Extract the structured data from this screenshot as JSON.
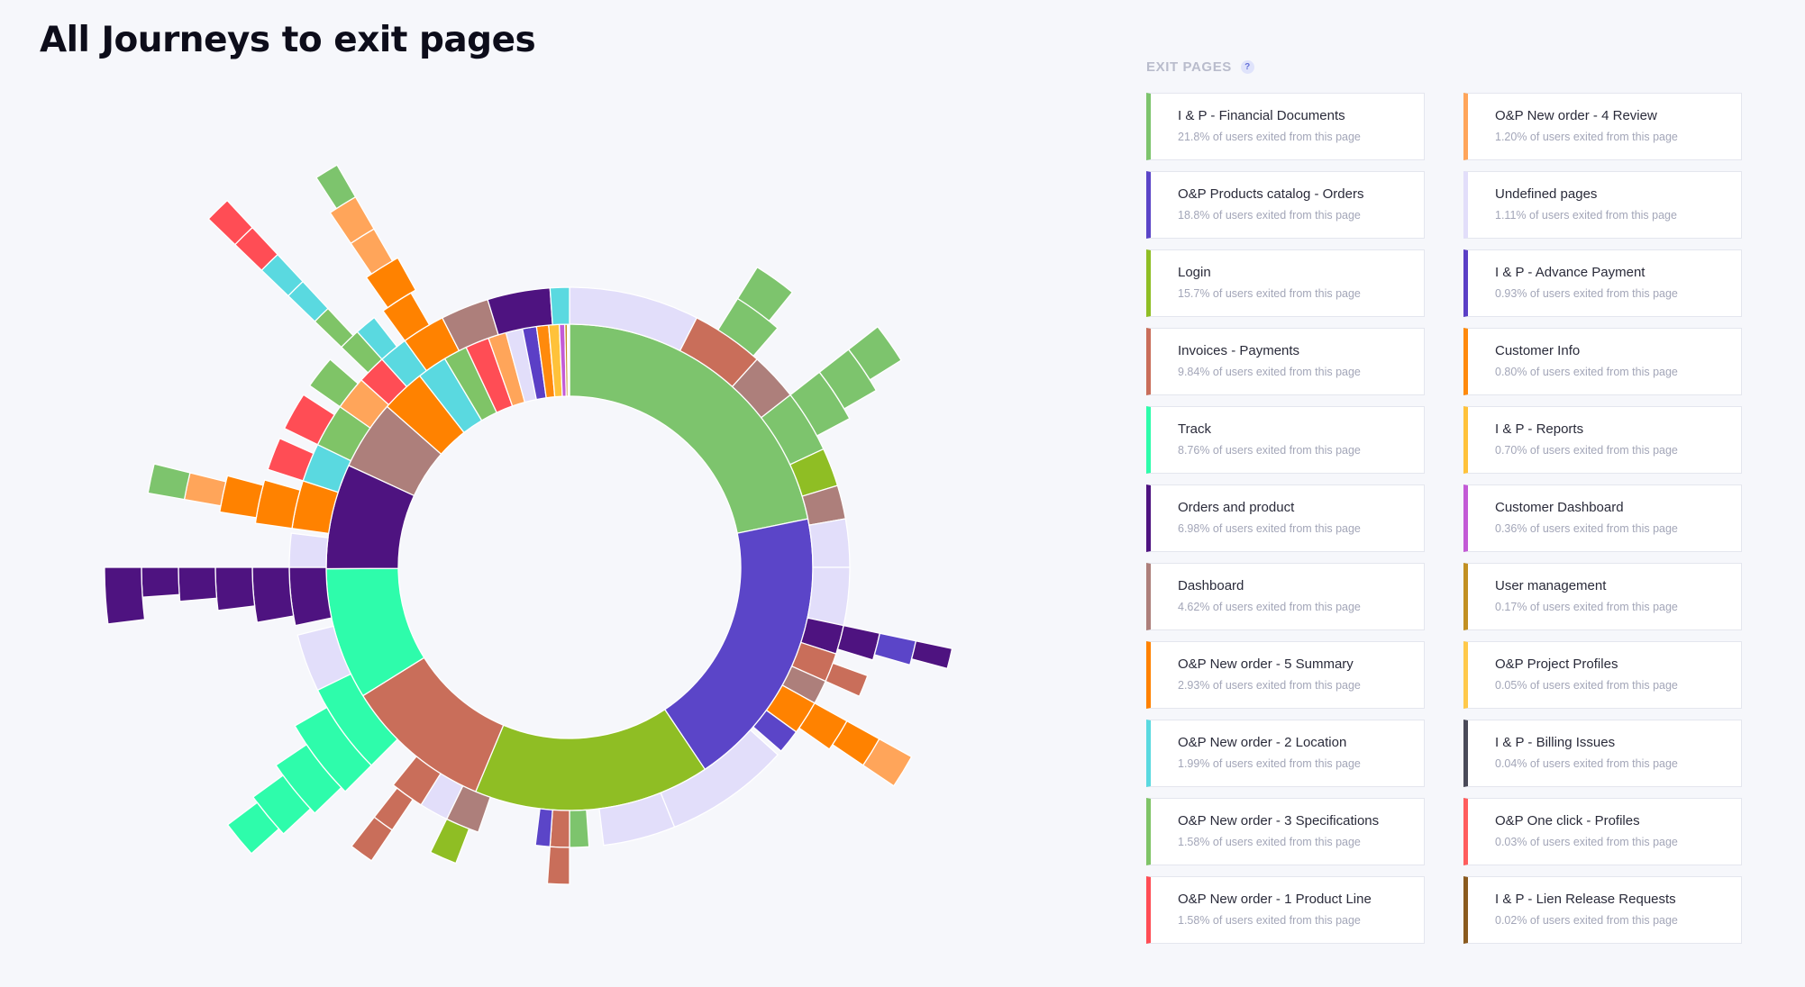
{
  "page": {
    "title": "All Journeys to exit pages"
  },
  "panel": {
    "header": "EXIT PAGES",
    "help_icon": "?"
  },
  "exit_pages": [
    {
      "name": "I & P - Financial Documents",
      "share": "21.8% of users exited from this page",
      "color": "#7dc46d"
    },
    {
      "name": "O&P Products catalog - Orders",
      "share": "18.8% of users exited from this page",
      "color": "#5b45c8"
    },
    {
      "name": "Login",
      "share": "15.7% of users exited from this page",
      "color": "#8fbe24"
    },
    {
      "name": "Invoices - Payments",
      "share": "9.84% of users exited from this page",
      "color": "#c96e5a"
    },
    {
      "name": "Track",
      "share": "8.76% of users exited from this page",
      "color": "#2efcab"
    },
    {
      "name": "Orders and product",
      "share": "6.98% of users exited from this page",
      "color": "#4e1380"
    },
    {
      "name": "Dashboard",
      "share": "4.62% of users exited from this page",
      "color": "#ad7f7b"
    },
    {
      "name": "O&P New order - 5 Summary",
      "share": "2.93% of users exited from this page",
      "color": "#ff8200"
    },
    {
      "name": "O&P New order - 2 Location",
      "share": "1.99% of users exited from this page",
      "color": "#5ad9e0"
    },
    {
      "name": "O&P New order - 3 Specifications",
      "share": "1.58% of users exited from this page",
      "color": "#7fc467"
    },
    {
      "name": "O&P New order - 1 Product Line",
      "share": "1.58% of users exited from this page",
      "color": "#ff4d55"
    },
    {
      "name": "O&P New order - 4 Review",
      "share": "1.20% of users exited from this page",
      "color": "#ffa55a"
    },
    {
      "name": "Undefined pages",
      "share": "1.11% of users exited from this page",
      "color": "#e2defa"
    },
    {
      "name": "I & P - Advance Payment",
      "share": "0.93% of users exited from this page",
      "color": "#5b3fc6"
    },
    {
      "name": "Customer Info",
      "share": "0.80% of users exited from this page",
      "color": "#ff8a0c"
    },
    {
      "name": "I & P - Reports",
      "share": "0.70% of users exited from this page",
      "color": "#ffc23a"
    },
    {
      "name": "Customer Dashboard",
      "share": "0.36% of users exited from this page",
      "color": "#c35ad6"
    },
    {
      "name": "User management",
      "share": "0.17% of users exited from this page",
      "color": "#c29022"
    },
    {
      "name": "O&P Project Profiles",
      "share": "0.05% of users exited from this page",
      "color": "#ffc94a"
    },
    {
      "name": "I & P - Billing Issues",
      "share": "0.04% of users exited from this page",
      "color": "#4a4a58"
    },
    {
      "name": "O&P One click - Profiles",
      "share": "0.03% of users exited from this page",
      "color": "#ff5d5d"
    },
    {
      "name": "I & P - Lien Release Requests",
      "share": "0.02% of users exited from this page",
      "color": "#8a5a1e"
    }
  ],
  "chart_data": {
    "type": "sunburst",
    "title": "All Journeys to exit pages",
    "unit": "% of users exited",
    "center": "empty",
    "inner_ring": [
      {
        "name": "I & P - Financial Documents",
        "value": 21.8
      },
      {
        "name": "O&P Products catalog - Orders",
        "value": 18.8
      },
      {
        "name": "Login",
        "value": 15.7
      },
      {
        "name": "Invoices - Payments",
        "value": 9.84
      },
      {
        "name": "Track",
        "value": 8.76
      },
      {
        "name": "Orders and product",
        "value": 6.98
      },
      {
        "name": "Dashboard",
        "value": 4.62
      },
      {
        "name": "O&P New order - 5 Summary",
        "value": 2.93
      },
      {
        "name": "O&P New order - 2 Location",
        "value": 1.99
      },
      {
        "name": "O&P New order - 3 Specifications",
        "value": 1.58
      },
      {
        "name": "O&P New order - 1 Product Line",
        "value": 1.58
      },
      {
        "name": "O&P New order - 4 Review",
        "value": 1.2
      },
      {
        "name": "Undefined pages",
        "value": 1.11
      },
      {
        "name": "I & P - Advance Payment",
        "value": 0.93
      },
      {
        "name": "Customer Info",
        "value": 0.8
      },
      {
        "name": "I & P - Reports",
        "value": 0.7
      },
      {
        "name": "Customer Dashboard",
        "value": 0.36
      },
      {
        "name": "User management",
        "value": 0.17
      },
      {
        "name": "O&P Project Profiles",
        "value": 0.05
      },
      {
        "name": "I & P - Billing Issues",
        "value": 0.04
      },
      {
        "name": "O&P One click - Profiles",
        "value": 0.03
      },
      {
        "name": "I & P - Lien Release Requests",
        "value": 0.02
      }
    ],
    "outer_rings": [
      {
        "from": 0,
        "to": 27,
        "depth": 1,
        "color": "#e2defa"
      },
      {
        "from": 27,
        "to": 42,
        "depth": 1,
        "color": "#c96e5a"
      },
      {
        "from": 42,
        "to": 52,
        "depth": 1,
        "color": "#ad7f7b"
      },
      {
        "from": 32,
        "to": 41,
        "depth": 2,
        "color": "#7dc46d"
      },
      {
        "from": 32,
        "to": 39,
        "depth": 3,
        "color": "#7dc46d"
      },
      {
        "from": 52,
        "to": 65,
        "depth": 1,
        "color": "#7dc46d"
      },
      {
        "from": 52,
        "to": 62,
        "depth": 2,
        "color": "#7dc46d"
      },
      {
        "from": 52,
        "to": 60,
        "depth": 3,
        "color": "#7dc46d"
      },
      {
        "from": 52,
        "to": 58,
        "depth": 4,
        "color": "#7dc46d"
      },
      {
        "from": 65,
        "to": 73,
        "depth": 1,
        "color": "#8fbe24"
      },
      {
        "from": 73,
        "to": 80,
        "depth": 1,
        "color": "#ad7f7b"
      },
      {
        "from": 80,
        "to": 90,
        "depth": 1,
        "color": "#e2defa"
      },
      {
        "from": 90,
        "to": 102,
        "depth": 1,
        "color": "#e2defa"
      },
      {
        "from": 102,
        "to": 108,
        "depth": 1,
        "color": "#4e1380"
      },
      {
        "from": 102,
        "to": 107,
        "depth": 2,
        "color": "#4e1380"
      },
      {
        "from": 102,
        "to": 106,
        "depth": 3,
        "color": "#5b45c8"
      },
      {
        "from": 102,
        "to": 105,
        "depth": 4,
        "color": "#4e1380"
      },
      {
        "from": 108,
        "to": 114,
        "depth": 1,
        "color": "#c96e5a"
      },
      {
        "from": 110,
        "to": 114,
        "depth": 2,
        "color": "#c96e5a"
      },
      {
        "from": 114,
        "to": 119,
        "depth": 1,
        "color": "#ad7f7b"
      },
      {
        "from": 119,
        "to": 126,
        "depth": 1,
        "color": "#ff8200"
      },
      {
        "from": 119,
        "to": 125,
        "depth": 2,
        "color": "#ff8200"
      },
      {
        "from": 119,
        "to": 124,
        "depth": 3,
        "color": "#ff8200"
      },
      {
        "from": 119,
        "to": 124,
        "depth": 4,
        "color": "#ffa55a"
      },
      {
        "from": 126,
        "to": 131,
        "depth": 1,
        "color": "#5b45c8"
      },
      {
        "from": 132,
        "to": 158,
        "depth": 1,
        "color": "#e2defa"
      },
      {
        "from": 158,
        "to": 173,
        "depth": 1,
        "color": "#e2defa"
      },
      {
        "from": 176,
        "to": 180,
        "depth": 1,
        "color": "#7dc46d"
      },
      {
        "from": 180,
        "to": 184,
        "depth": 1,
        "color": "#c96e5a"
      },
      {
        "from": 180,
        "to": 184,
        "depth": 2,
        "color": "#c96e5a"
      },
      {
        "from": 184,
        "to": 187,
        "depth": 1,
        "color": "#5b45c8"
      },
      {
        "from": 199,
        "to": 206,
        "depth": 1,
        "color": "#ad7f7b"
      },
      {
        "from": 201,
        "to": 206,
        "depth": 2,
        "color": "#8fbe24"
      },
      {
        "from": 206,
        "to": 212,
        "depth": 1,
        "color": "#e2defa"
      },
      {
        "from": 212,
        "to": 219,
        "depth": 1,
        "color": "#c96e5a"
      },
      {
        "from": 214,
        "to": 218,
        "depth": 2,
        "color": "#c96e5a"
      },
      {
        "from": 214,
        "to": 218,
        "depth": 3,
        "color": "#c96e5a"
      },
      {
        "from": 225,
        "to": 244,
        "depth": 1,
        "color": "#2efcab"
      },
      {
        "from": 225,
        "to": 240,
        "depth": 2,
        "color": "#2efcab"
      },
      {
        "from": 226,
        "to": 236,
        "depth": 3,
        "color": "#2efcab"
      },
      {
        "from": 227,
        "to": 234,
        "depth": 4,
        "color": "#2efcab"
      },
      {
        "from": 228,
        "to": 233,
        "depth": 5,
        "color": "#2efcab"
      },
      {
        "from": 244,
        "to": 256,
        "depth": 1,
        "color": "#e2defa"
      },
      {
        "from": 258,
        "to": 270,
        "depth": 1,
        "color": "#4e1380"
      },
      {
        "from": 260,
        "to": 270,
        "depth": 2,
        "color": "#4e1380"
      },
      {
        "from": 263,
        "to": 270,
        "depth": 3,
        "color": "#4e1380"
      },
      {
        "from": 265,
        "to": 270,
        "depth": 4,
        "color": "#4e1380"
      },
      {
        "from": 266,
        "to": 270,
        "depth": 5,
        "color": "#4e1380"
      },
      {
        "from": 263,
        "to": 270,
        "depth": 6,
        "color": "#4e1380"
      },
      {
        "from": 270,
        "to": 277,
        "depth": 1,
        "color": "#e2defa"
      },
      {
        "from": 278,
        "to": 288,
        "depth": 1,
        "color": "#ff8200"
      },
      {
        "from": 278,
        "to": 286,
        "depth": 2,
        "color": "#ff8200"
      },
      {
        "from": 279,
        "to": 285,
        "depth": 3,
        "color": "#ff8200"
      },
      {
        "from": 280,
        "to": 284,
        "depth": 4,
        "color": "#ffa55a"
      },
      {
        "from": 280,
        "to": 284,
        "depth": 5,
        "color": "#7dc46d"
      },
      {
        "from": 288,
        "to": 296,
        "depth": 1,
        "color": "#5ad9e0"
      },
      {
        "from": 288,
        "to": 294,
        "depth": 2,
        "color": "#ff4d55"
      },
      {
        "from": 296,
        "to": 305,
        "depth": 1,
        "color": "#7fc467"
      },
      {
        "from": 296,
        "to": 303,
        "depth": 2,
        "color": "#ff4d55"
      },
      {
        "from": 305,
        "to": 312,
        "depth": 1,
        "color": "#ffa55a"
      },
      {
        "from": 305,
        "to": 311,
        "depth": 2,
        "color": "#7fc467"
      },
      {
        "from": 312,
        "to": 318,
        "depth": 1,
        "color": "#ff4d55"
      },
      {
        "from": 314,
        "to": 318,
        "depth": 2,
        "color": "#7fc467"
      },
      {
        "from": 314,
        "to": 317,
        "depth": 3,
        "color": "#7fc467"
      },
      {
        "from": 314,
        "to": 317,
        "depth": 4,
        "color": "#5ad9e0"
      },
      {
        "from": 314,
        "to": 317,
        "depth": 5,
        "color": "#5ad9e0"
      },
      {
        "from": 314,
        "to": 317,
        "depth": 6,
        "color": "#ff4d55"
      },
      {
        "from": 314,
        "to": 317,
        "depth": 7,
        "color": "#ff4d55"
      },
      {
        "from": 318,
        "to": 324,
        "depth": 1,
        "color": "#5ad9e0"
      },
      {
        "from": 318,
        "to": 322,
        "depth": 2,
        "color": "#5ad9e0"
      },
      {
        "from": 324,
        "to": 333,
        "depth": 1,
        "color": "#ff8200"
      },
      {
        "from": 324,
        "to": 330,
        "depth": 2,
        "color": "#ff8200"
      },
      {
        "from": 325,
        "to": 331,
        "depth": 3,
        "color": "#ff8200"
      },
      {
        "from": 326,
        "to": 330,
        "depth": 4,
        "color": "#ffa55a"
      },
      {
        "from": 326,
        "to": 330,
        "depth": 5,
        "color": "#ffa55a"
      },
      {
        "from": 327,
        "to": 330,
        "depth": 6,
        "color": "#7dc46d"
      },
      {
        "from": 333,
        "to": 343,
        "depth": 1,
        "color": "#ad7f7b"
      },
      {
        "from": 343,
        "to": 356,
        "depth": 1,
        "color": "#4e1380"
      },
      {
        "from": 356,
        "to": 360,
        "depth": 1,
        "color": "#5ad9e0"
      }
    ]
  }
}
